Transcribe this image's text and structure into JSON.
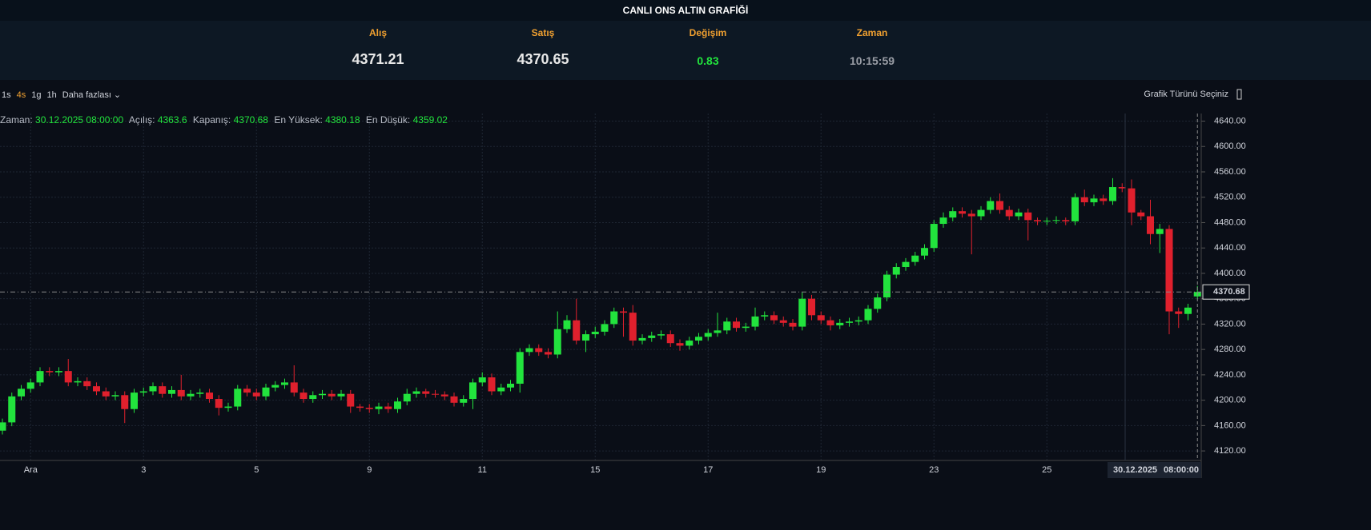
{
  "header": {
    "title": "CANLI ONS ALTIN GRAFİĞİ",
    "quotes": [
      {
        "label": "Alış",
        "value": "4371.21"
      },
      {
        "label": "Satış",
        "value": "4370.65"
      },
      {
        "label": "Değişim",
        "value": "0.83"
      },
      {
        "label": "Zaman",
        "value": "10:15:59"
      }
    ]
  },
  "toolbar": {
    "intervals": [
      "1s",
      "4s",
      "1g",
      "1h"
    ],
    "more": "Daha fazlası",
    "chart_type": "Grafik Türünü Seçiniz"
  },
  "ohlc_info": [
    {
      "label": "Zaman:",
      "value": "30.12.2025 08:00:00"
    },
    {
      "label": "Açılış:",
      "value": "4363.6"
    },
    {
      "label": "Kapanış:",
      "value": "4370.68"
    },
    {
      "label": "En Yüksek:",
      "value": "4380.18"
    },
    {
      "label": "En Düşük:",
      "value": "4359.02"
    }
  ],
  "chart_data": {
    "type": "candlestick",
    "up_color": "#22e33d",
    "down_color": "#e0202d",
    "grid": true,
    "categories": [
      null,
      null,
      null,
      "Ara",
      null,
      null,
      null,
      null,
      null,
      null,
      null,
      null,
      null,
      null,
      null,
      "3",
      null,
      null,
      null,
      null,
      null,
      null,
      null,
      null,
      null,
      null,
      null,
      "5",
      null,
      null,
      null,
      null,
      null,
      null,
      null,
      null,
      null,
      null,
      null,
      "9",
      null,
      null,
      null,
      null,
      null,
      null,
      null,
      null,
      null,
      null,
      null,
      "11",
      null,
      null,
      null,
      null,
      null,
      null,
      null,
      null,
      null,
      null,
      null,
      "15",
      null,
      null,
      null,
      null,
      null,
      null,
      null,
      null,
      null,
      null,
      null,
      "17",
      null,
      null,
      null,
      null,
      null,
      null,
      null,
      null,
      null,
      null,
      null,
      "19",
      null,
      null,
      null,
      null,
      null,
      null,
      null,
      null,
      null,
      null,
      null,
      "23",
      null,
      null,
      null,
      null,
      null,
      null,
      null,
      null,
      null,
      null,
      null,
      "25",
      null,
      null,
      null,
      null,
      null,
      null,
      null,
      null,
      null,
      null,
      null,
      null,
      null,
      null,
      null,
      null
    ],
    "open": [
      4152,
      4165,
      4206,
      4218,
      4228,
      4246,
      4244,
      4246,
      4228,
      4230,
      4222,
      4214,
      4206,
      4208,
      4186,
      4212,
      4214,
      4222,
      4210,
      4216,
      4206,
      4210,
      4212,
      4202,
      4188,
      4190,
      4218,
      4212,
      4206,
      4220,
      4224,
      4228,
      4212,
      4202,
      4208,
      4210,
      4206,
      4210,
      4190,
      4188,
      4186,
      4190,
      4186,
      4198,
      4210,
      4214,
      4210,
      4209,
      4206,
      4196,
      4202,
      4228,
      4236,
      4214,
      4220,
      4226,
      4276,
      4282,
      4276,
      4272,
      4312,
      4326,
      4294,
      4304,
      4308,
      4320,
      4340,
      4338,
      4294,
      4298,
      4302,
      4304,
      4290,
      4286,
      4294,
      4300,
      4306,
      4310,
      4324,
      4314,
      4316,
      4332,
      4334,
      4326,
      4322,
      4316,
      4360,
      4334,
      4326,
      4318,
      4322,
      4324,
      4326,
      4344,
      4362,
      4398,
      4410,
      4418,
      4428,
      4440,
      4478,
      4488,
      4498,
      4494,
      4490,
      4500,
      4514,
      4500,
      4490,
      4496,
      4484,
      4482,
      4483,
      4484,
      4482,
      4520,
      4512,
      4518,
      4514,
      4536,
      4534,
      4496,
      4490,
      4462,
      4470,
      4340,
      4336,
      4363.6
    ],
    "high": [
      4171,
      4212,
      4224,
      4234,
      4252,
      4252,
      4252,
      4265,
      4236,
      4236,
      4228,
      4220,
      4214,
      4214,
      4218,
      4220,
      4228,
      4228,
      4222,
      4240,
      4216,
      4218,
      4218,
      4208,
      4196,
      4224,
      4224,
      4218,
      4226,
      4230,
      4234,
      4255,
      4218,
      4214,
      4216,
      4216,
      4216,
      4216,
      4194,
      4194,
      4196,
      4196,
      4204,
      4218,
      4220,
      4218,
      4216,
      4214,
      4212,
      4208,
      4234,
      4244,
      4242,
      4226,
      4232,
      4282,
      4288,
      4288,
      4282,
      4340,
      4334,
      4360,
      4310,
      4316,
      4326,
      4346,
      4346,
      4350,
      4304,
      4308,
      4310,
      4310,
      4296,
      4300,
      4306,
      4312,
      4338,
      4330,
      4330,
      4322,
      4346,
      4340,
      4340,
      4332,
      4328,
      4370,
      4366,
      4340,
      4332,
      4328,
      4330,
      4332,
      4350,
      4368,
      4404,
      4416,
      4424,
      4434,
      4446,
      4484,
      4496,
      4504,
      4504,
      4500,
      4506,
      4520,
      4526,
      4506,
      4502,
      4502,
      4488,
      4488,
      4490,
      4488,
      4526,
      4532,
      4524,
      4524,
      4550,
      4542,
      4548,
      4500,
      4516,
      4478,
      4476,
      4346,
      4352,
      4380.18
    ],
    "low": [
      4146,
      4159,
      4200,
      4212,
      4222,
      4238,
      4238,
      4222,
      4222,
      4216,
      4208,
      4200,
      4200,
      4164,
      4180,
      4206,
      4208,
      4204,
      4204,
      4200,
      4200,
      4204,
      4196,
      4176,
      4182,
      4184,
      4206,
      4200,
      4200,
      4214,
      4218,
      4206,
      4196,
      4196,
      4202,
      4200,
      4200,
      4180,
      4182,
      4180,
      4178,
      4180,
      4180,
      4192,
      4204,
      4204,
      4204,
      4200,
      4190,
      4190,
      4186,
      4222,
      4208,
      4208,
      4214,
      4212,
      4270,
      4270,
      4266,
      4266,
      4306,
      4288,
      4276,
      4298,
      4302,
      4314,
      4300,
      4286,
      4288,
      4292,
      4296,
      4284,
      4278,
      4280,
      4288,
      4294,
      4300,
      4304,
      4308,
      4308,
      4310,
      4326,
      4320,
      4316,
      4310,
      4310,
      4326,
      4320,
      4310,
      4312,
      4316,
      4318,
      4320,
      4338,
      4356,
      4392,
      4404,
      4412,
      4422,
      4434,
      4472,
      4482,
      4488,
      4430,
      4484,
      4494,
      4494,
      4484,
      4484,
      4452,
      4476,
      4476,
      4478,
      4476,
      4476,
      4506,
      4506,
      4508,
      4508,
      4528,
      4476,
      4484,
      4446,
      4432,
      4304,
      4314,
      4326,
      4359.02
    ],
    "close": [
      4165,
      4206,
      4218,
      4228,
      4246,
      4244,
      4246,
      4228,
      4230,
      4222,
      4214,
      4206,
      4208,
      4186,
      4212,
      4214,
      4222,
      4210,
      4216,
      4206,
      4210,
      4212,
      4202,
      4188,
      4190,
      4218,
      4212,
      4206,
      4220,
      4224,
      4228,
      4212,
      4202,
      4208,
      4210,
      4206,
      4210,
      4190,
      4188,
      4186,
      4190,
      4186,
      4198,
      4210,
      4214,
      4210,
      4209,
      4206,
      4196,
      4202,
      4228,
      4236,
      4214,
      4220,
      4226,
      4276,
      4282,
      4276,
      4272,
      4312,
      4326,
      4294,
      4304,
      4308,
      4320,
      4340,
      4338,
      4294,
      4298,
      4302,
      4304,
      4290,
      4286,
      4294,
      4300,
      4306,
      4310,
      4324,
      4314,
      4316,
      4332,
      4334,
      4326,
      4322,
      4316,
      4360,
      4334,
      4326,
      4318,
      4322,
      4324,
      4326,
      4344,
      4362,
      4398,
      4410,
      4418,
      4428,
      4440,
      4478,
      4488,
      4498,
      4494,
      4490,
      4500,
      4514,
      4500,
      4490,
      4496,
      4484,
      4482,
      4483,
      4484,
      4482,
      4520,
      4512,
      4518,
      4514,
      4536,
      4534,
      4496,
      4490,
      4462,
      4470,
      4340,
      4336,
      4346,
      4370.68
    ],
    "ylim": [
      4105,
      4652
    ],
    "yticks": [
      {
        "value": 4120,
        "label": "4120.00"
      },
      {
        "value": 4160,
        "label": "4160.00"
      },
      {
        "value": 4200,
        "label": "4200.00"
      },
      {
        "value": 4240,
        "label": "4240.00"
      },
      {
        "value": 4280,
        "label": "4280.00"
      },
      {
        "value": 4320,
        "label": "4320.00"
      },
      {
        "value": 4360,
        "label": "4360.00"
      },
      {
        "value": 4400,
        "label": "4400.00"
      },
      {
        "value": 4440,
        "label": "4440.00"
      },
      {
        "value": 4480,
        "label": "4480.00"
      },
      {
        "value": 4520,
        "label": "4520.00"
      },
      {
        "value": 4560,
        "label": "4560.00"
      },
      {
        "value": 4600,
        "label": "4600.00"
      },
      {
        "value": 4640,
        "label": "4640.00"
      }
    ],
    "price_line": {
      "value": 4370.68,
      "label": "4370.68"
    },
    "crosshair": {
      "date": "30.12.2025",
      "time": "08:00:00"
    }
  }
}
